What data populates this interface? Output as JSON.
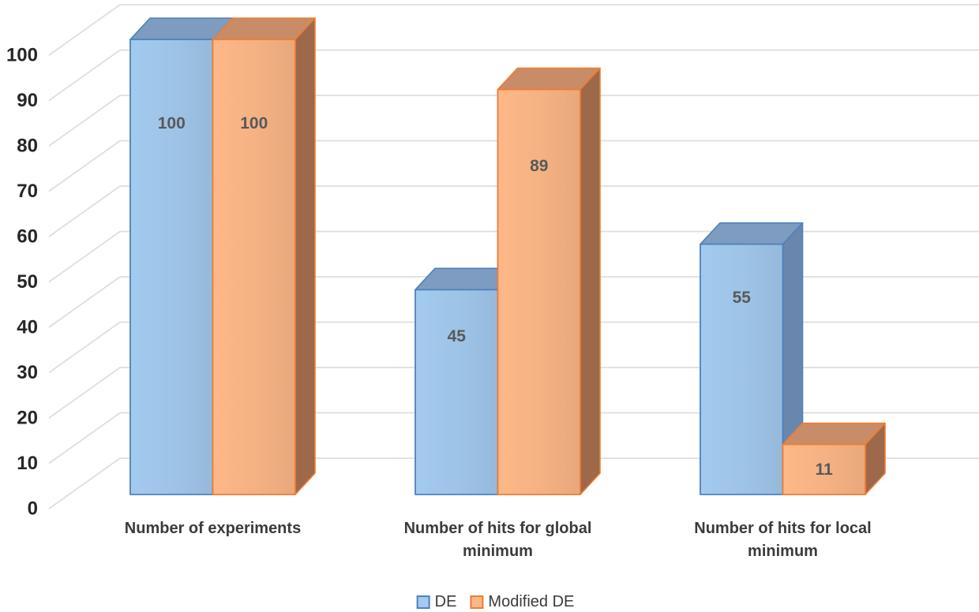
{
  "chart_data": {
    "type": "bar",
    "variant": "3d-clustered-column",
    "title": "",
    "xlabel": "",
    "ylabel": "",
    "categories": [
      "Number of experiments",
      "Number of hits for global minimum",
      "Number of hits for local minimum"
    ],
    "series": [
      {
        "name": "DE",
        "values": [
          100,
          45,
          55
        ],
        "fill": "#9DC3E6",
        "border": "#4E81BC",
        "top_face": "#7E9CC0",
        "side_face": "#6987AC"
      },
      {
        "name": "Modified DE",
        "values": [
          100,
          89,
          11
        ],
        "fill": "#F4B183",
        "border": "#ED7D31",
        "top_face": "#C88C69",
        "side_face": "#9E684B"
      }
    ],
    "data_labels": [
      [
        "100",
        "45",
        "55"
      ],
      [
        "100",
        "89",
        "11"
      ]
    ],
    "y_ticks": [
      "0",
      "10",
      "20",
      "30",
      "40",
      "50",
      "60",
      "70",
      "80",
      "90",
      "100"
    ],
    "ylim": [
      0,
      100
    ],
    "grid_on": true,
    "legend_position": "bottom",
    "colors": {
      "background": "#FFFFFF",
      "gridline": "#DEDEDE",
      "tick_label": "#262626",
      "category_label": "#3B3B3B",
      "data_label": "#595959",
      "legend_label": "#3B3B3B"
    }
  }
}
